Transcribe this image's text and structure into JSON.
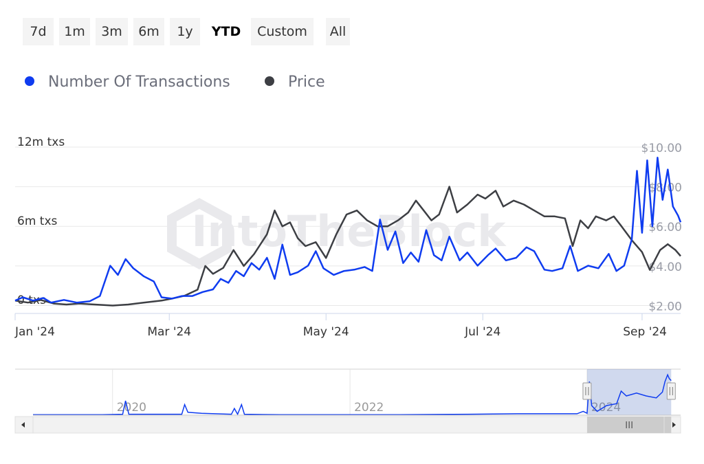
{
  "range_selector": {
    "buttons": [
      {
        "label": "7d",
        "active": false
      },
      {
        "label": "1m",
        "active": false
      },
      {
        "label": "3m",
        "active": false
      },
      {
        "label": "6m",
        "active": false
      },
      {
        "label": "1y",
        "active": false
      },
      {
        "label": "YTD",
        "active": true
      },
      {
        "label": "Custom",
        "active": false
      },
      {
        "label": "All",
        "active": false
      }
    ]
  },
  "watermark": "IntoTheBlock",
  "colors": {
    "transactions": "#0f3cf0",
    "price": "#3d3f44",
    "grid": "#e8e8e8",
    "navigator_fill": "rgba(100,130,200,0.30)"
  },
  "chart_data": {
    "type": "line",
    "legend_position": "top-left",
    "grid": true,
    "series": [
      {
        "name": "Number Of Transactions",
        "axis": "left",
        "color": "#0f3cf0",
        "points": [
          [
            "2024-01-01",
            0.35
          ],
          [
            "2024-01-04",
            0.6
          ],
          [
            "2024-01-08",
            0.35
          ],
          [
            "2024-01-12",
            0.55
          ],
          [
            "2024-01-15",
            0.2
          ],
          [
            "2024-01-20",
            0.4
          ],
          [
            "2024-01-25",
            0.2
          ],
          [
            "2024-01-30",
            0.3
          ],
          [
            "2024-02-03",
            0.7
          ],
          [
            "2024-02-07",
            3.0
          ],
          [
            "2024-02-10",
            2.3
          ],
          [
            "2024-02-13",
            3.5
          ],
          [
            "2024-02-16",
            2.8
          ],
          [
            "2024-02-20",
            2.2
          ],
          [
            "2024-02-24",
            1.8
          ],
          [
            "2024-02-27",
            0.6
          ],
          [
            "2024-03-02",
            0.5
          ],
          [
            "2024-03-06",
            0.7
          ],
          [
            "2024-03-10",
            0.7
          ],
          [
            "2024-03-14",
            1.0
          ],
          [
            "2024-03-18",
            1.2
          ],
          [
            "2024-03-21",
            2.0
          ],
          [
            "2024-03-24",
            1.7
          ],
          [
            "2024-03-27",
            2.6
          ],
          [
            "2024-03-30",
            2.2
          ],
          [
            "2024-04-02",
            3.2
          ],
          [
            "2024-04-05",
            2.7
          ],
          [
            "2024-04-08",
            3.6
          ],
          [
            "2024-04-11",
            2.0
          ],
          [
            "2024-04-14",
            4.6
          ],
          [
            "2024-04-17",
            2.3
          ],
          [
            "2024-04-20",
            2.5
          ],
          [
            "2024-04-24",
            3.0
          ],
          [
            "2024-04-27",
            4.1
          ],
          [
            "2024-04-30",
            2.8
          ],
          [
            "2024-05-04",
            2.3
          ],
          [
            "2024-05-08",
            2.6
          ],
          [
            "2024-05-12",
            2.7
          ],
          [
            "2024-05-16",
            2.9
          ],
          [
            "2024-05-19",
            2.6
          ],
          [
            "2024-05-22",
            6.5
          ],
          [
            "2024-05-25",
            4.2
          ],
          [
            "2024-05-28",
            5.6
          ],
          [
            "2024-05-31",
            3.2
          ],
          [
            "2024-06-03",
            4.0
          ],
          [
            "2024-06-06",
            3.3
          ],
          [
            "2024-06-09",
            5.7
          ],
          [
            "2024-06-12",
            3.8
          ],
          [
            "2024-06-15",
            3.4
          ],
          [
            "2024-06-18",
            5.2
          ],
          [
            "2024-06-22",
            3.4
          ],
          [
            "2024-06-25",
            4.0
          ],
          [
            "2024-06-29",
            3.0
          ],
          [
            "2024-07-03",
            3.8
          ],
          [
            "2024-07-06",
            4.3
          ],
          [
            "2024-07-10",
            3.4
          ],
          [
            "2024-07-14",
            3.6
          ],
          [
            "2024-07-18",
            4.4
          ],
          [
            "2024-07-21",
            4.1
          ],
          [
            "2024-07-25",
            2.7
          ],
          [
            "2024-07-28",
            2.6
          ],
          [
            "2024-08-01",
            2.8
          ],
          [
            "2024-08-04",
            4.5
          ],
          [
            "2024-08-07",
            2.6
          ],
          [
            "2024-08-11",
            3.0
          ],
          [
            "2024-08-15",
            2.8
          ],
          [
            "2024-08-19",
            3.9
          ],
          [
            "2024-08-22",
            2.6
          ],
          [
            "2024-08-25",
            3.0
          ],
          [
            "2024-08-28",
            5.0
          ],
          [
            "2024-08-30",
            10.2
          ],
          [
            "2024-09-01",
            5.5
          ],
          [
            "2024-09-03",
            11.0
          ],
          [
            "2024-09-05",
            6.0
          ],
          [
            "2024-09-07",
            11.2
          ],
          [
            "2024-09-09",
            8.0
          ],
          [
            "2024-09-11",
            10.3
          ],
          [
            "2024-09-13",
            7.5
          ],
          [
            "2024-09-15",
            6.8
          ],
          [
            "2024-09-16",
            6.3
          ]
        ]
      },
      {
        "name": "Price",
        "axis": "right",
        "color": "#3d3f44",
        "points": [
          [
            "2024-01-01",
            2.25
          ],
          [
            "2024-01-06",
            2.15
          ],
          [
            "2024-01-11",
            2.28
          ],
          [
            "2024-01-16",
            2.1
          ],
          [
            "2024-01-21",
            2.05
          ],
          [
            "2024-01-26",
            2.1
          ],
          [
            "2024-02-01",
            2.05
          ],
          [
            "2024-02-08",
            2.0
          ],
          [
            "2024-02-14",
            2.05
          ],
          [
            "2024-02-20",
            2.15
          ],
          [
            "2024-02-27",
            2.25
          ],
          [
            "2024-03-02",
            2.35
          ],
          [
            "2024-03-07",
            2.5
          ],
          [
            "2024-03-12",
            2.8
          ],
          [
            "2024-03-15",
            4.0
          ],
          [
            "2024-03-18",
            3.6
          ],
          [
            "2024-03-22",
            3.9
          ],
          [
            "2024-03-26",
            4.8
          ],
          [
            "2024-03-30",
            4.0
          ],
          [
            "2024-04-03",
            4.6
          ],
          [
            "2024-04-08",
            5.6
          ],
          [
            "2024-04-11",
            6.8
          ],
          [
            "2024-04-14",
            6.0
          ],
          [
            "2024-04-17",
            6.2
          ],
          [
            "2024-04-20",
            5.4
          ],
          [
            "2024-04-23",
            5.0
          ],
          [
            "2024-04-27",
            5.2
          ],
          [
            "2024-05-01",
            4.4
          ],
          [
            "2024-05-05",
            5.6
          ],
          [
            "2024-05-09",
            6.6
          ],
          [
            "2024-05-13",
            6.8
          ],
          [
            "2024-05-17",
            6.3
          ],
          [
            "2024-05-21",
            6.0
          ],
          [
            "2024-05-25",
            6.0
          ],
          [
            "2024-05-29",
            6.3
          ],
          [
            "2024-06-02",
            6.7
          ],
          [
            "2024-06-05",
            7.3
          ],
          [
            "2024-06-08",
            6.8
          ],
          [
            "2024-06-11",
            6.3
          ],
          [
            "2024-06-14",
            6.6
          ],
          [
            "2024-06-18",
            8.0
          ],
          [
            "2024-06-21",
            6.7
          ],
          [
            "2024-06-25",
            7.1
          ],
          [
            "2024-06-29",
            7.6
          ],
          [
            "2024-07-02",
            7.4
          ],
          [
            "2024-07-06",
            7.8
          ],
          [
            "2024-07-09",
            7.0
          ],
          [
            "2024-07-13",
            7.3
          ],
          [
            "2024-07-17",
            7.1
          ],
          [
            "2024-07-21",
            6.8
          ],
          [
            "2024-07-25",
            6.5
          ],
          [
            "2024-07-29",
            6.5
          ],
          [
            "2024-08-02",
            6.4
          ],
          [
            "2024-08-05",
            5.0
          ],
          [
            "2024-08-08",
            6.3
          ],
          [
            "2024-08-11",
            5.9
          ],
          [
            "2024-08-14",
            6.5
          ],
          [
            "2024-08-18",
            6.3
          ],
          [
            "2024-08-21",
            6.5
          ],
          [
            "2024-08-24",
            6.0
          ],
          [
            "2024-08-28",
            5.3
          ],
          [
            "2024-09-01",
            4.7
          ],
          [
            "2024-09-04",
            3.8
          ],
          [
            "2024-09-08",
            4.8
          ],
          [
            "2024-09-11",
            5.1
          ],
          [
            "2024-09-14",
            4.8
          ],
          [
            "2024-09-16",
            4.5
          ]
        ]
      }
    ],
    "y_left": {
      "ticks": [
        {
          "v": 0,
          "label": "0 txs"
        },
        {
          "v": 6,
          "label": "6m txs"
        },
        {
          "v": 12,
          "label": "12m txs"
        }
      ],
      "range": [
        0,
        12
      ]
    },
    "y_right": {
      "ticks": [
        {
          "v": 2,
          "label": "$2.00"
        },
        {
          "v": 4,
          "label": "$4.00"
        },
        {
          "v": 6,
          "label": "$6.00"
        },
        {
          "v": 8,
          "label": "$8.00"
        },
        {
          "v": 10,
          "label": "$10.00"
        }
      ],
      "range": [
        1.6,
        10
      ]
    },
    "x_axis": {
      "range": [
        "2024-01-01",
        "2024-09-16"
      ],
      "ticks": [
        {
          "date": "2024-01-01",
          "label": "Jan '24"
        },
        {
          "date": "2024-03-01",
          "label": "Mar '24"
        },
        {
          "date": "2024-05-01",
          "label": "May '24"
        },
        {
          "date": "2024-07-01",
          "label": "Jul '24"
        },
        {
          "date": "2024-09-01",
          "label": "Sep '24"
        }
      ]
    },
    "navigator": {
      "range": [
        "2019-05-01",
        "2024-10-15"
      ],
      "ticks": [
        {
          "date": "2020-01-01",
          "label": "2020"
        },
        {
          "date": "2022-01-01",
          "label": "2022"
        },
        {
          "date": "2024-01-01",
          "label": "2024"
        }
      ],
      "selection": [
        "2024-01-01",
        "2024-09-16"
      ],
      "points": [
        [
          "2019-05-01",
          0.05
        ],
        [
          "2019-12-01",
          0.05
        ],
        [
          "2020-02-01",
          0.1
        ],
        [
          "2020-02-10",
          1.5
        ],
        [
          "2020-02-20",
          0.1
        ],
        [
          "2020-08-01",
          0.1
        ],
        [
          "2020-08-10",
          1.1
        ],
        [
          "2020-08-20",
          0.3
        ],
        [
          "2020-10-01",
          0.2
        ],
        [
          "2021-01-01",
          0.1
        ],
        [
          "2021-01-10",
          0.7
        ],
        [
          "2021-01-20",
          0.1
        ],
        [
          "2021-02-01",
          1.1
        ],
        [
          "2021-02-10",
          0.1
        ],
        [
          "2021-06-01",
          0.05
        ],
        [
          "2022-06-01",
          0.05
        ],
        [
          "2023-01-01",
          0.1
        ],
        [
          "2023-06-01",
          0.15
        ],
        [
          "2023-12-01",
          0.15
        ],
        [
          "2023-12-20",
          0.4
        ],
        [
          "2024-01-01",
          0.2
        ],
        [
          "2024-01-08",
          3.5
        ],
        [
          "2024-01-15",
          1.0
        ],
        [
          "2024-02-01",
          0.4
        ],
        [
          "2024-03-01",
          1.0
        ],
        [
          "2024-04-01",
          1.2
        ],
        [
          "2024-04-15",
          2.5
        ],
        [
          "2024-05-01",
          2.0
        ],
        [
          "2024-06-01",
          2.3
        ],
        [
          "2024-07-01",
          2.0
        ],
        [
          "2024-08-01",
          1.8
        ],
        [
          "2024-08-20",
          2.4
        ],
        [
          "2024-08-28",
          3.5
        ],
        [
          "2024-09-05",
          4.2
        ],
        [
          "2024-09-10",
          3.8
        ],
        [
          "2024-09-16",
          3.6
        ]
      ]
    }
  }
}
